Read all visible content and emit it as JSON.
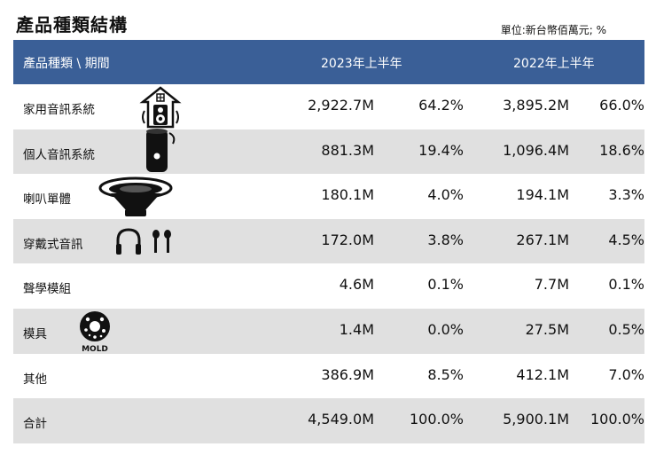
{
  "title": "產品種類結構",
  "unit": "單位:新台幣佰萬元; %",
  "header": {
    "col0": "產品種類 \\ 期間",
    "col1": "2023年上半年",
    "col2": "2022年上半年"
  },
  "rows": [
    {
      "label": "家用音訊系統",
      "v2023": "2,922.7M",
      "p2023": "64.2%",
      "v2022": "3,895.2M",
      "p2022": "66.0%",
      "icon": "home-speaker-icon"
    },
    {
      "label": "個人音訊系統",
      "v2023": "881.3M",
      "p2023": "19.4%",
      "v2022": "1,096.4M",
      "p2022": "18.6%",
      "icon": "portable-speaker-icon"
    },
    {
      "label": "喇叭單體",
      "v2023": "180.1M",
      "p2023": "4.0%",
      "v2022": "194.1M",
      "p2022": "3.3%",
      "icon": "speaker-driver-icon"
    },
    {
      "label": "穿戴式音訊",
      "v2023": "172.0M",
      "p2023": "3.8%",
      "v2022": "267.1M",
      "p2022": "4.5%",
      "icon": "headphones-earbuds-icon"
    },
    {
      "label": "聲學模組",
      "v2023": "4.6M",
      "p2023": "0.1%",
      "v2022": "7.7M",
      "p2022": "0.1%",
      "icon": ""
    },
    {
      "label": "模具",
      "v2023": "1.4M",
      "p2023": "0.0%",
      "v2022": "27.5M",
      "p2022": "0.5%",
      "icon": "mold-icon",
      "icon_text": "MOLD"
    },
    {
      "label": "其他",
      "v2023": "386.9M",
      "p2023": "8.5%",
      "v2022": "412.1M",
      "p2022": "7.0%",
      "icon": ""
    },
    {
      "label": "合計",
      "v2023": "4,549.0M",
      "p2023": "100.0%",
      "v2022": "5,900.1M",
      "p2022": "100.0%",
      "icon": ""
    }
  ],
  "colors": {
    "header_bg": "#3a5f97",
    "shade": "#e0e0e0"
  }
}
